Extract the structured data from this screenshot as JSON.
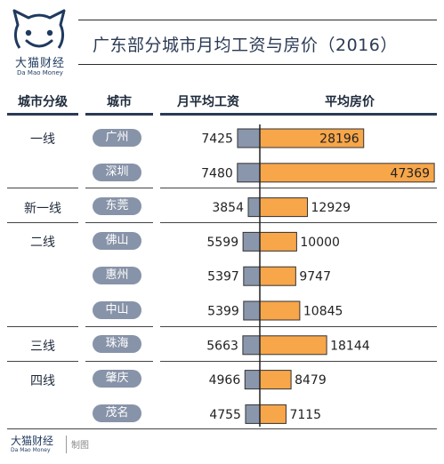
{
  "brand": {
    "name_cn": "大猫财经",
    "name_en": "Da Mao Money",
    "credit": "制图"
  },
  "colors": {
    "wage_bar": "#8a96ab",
    "price_bar": "#f7a64a",
    "header_rule": "#2b3a55",
    "pill": "#8793a8"
  },
  "chart_data": {
    "type": "bar",
    "title": "广东部分城市月均工资与房价（2016）",
    "columns": [
      "城市分级",
      "城市",
      "月平均工资",
      "平均房价"
    ],
    "tiers": [
      "一线",
      "新一线",
      "二线",
      "三线",
      "四线"
    ],
    "categories": [
      "广州",
      "深圳",
      "东莞",
      "佛山",
      "惠州",
      "中山",
      "珠海",
      "肇庆",
      "茂名"
    ],
    "city_tier": [
      "一线",
      "一线",
      "新一线",
      "二线",
      "二线",
      "二线",
      "三线",
      "四线",
      "四线"
    ],
    "series": [
      {
        "name": "月平均工资",
        "values": [
          7425,
          7480,
          3854,
          5599,
          5397,
          5399,
          5663,
          4966,
          4755
        ]
      },
      {
        "name": "平均房价",
        "values": [
          28196,
          47369,
          12929,
          10000,
          9747,
          10845,
          18144,
          8479,
          7115
        ]
      }
    ],
    "value_labels_inside_price": [
      true,
      true,
      false,
      false,
      false,
      false,
      false,
      false,
      false
    ]
  }
}
